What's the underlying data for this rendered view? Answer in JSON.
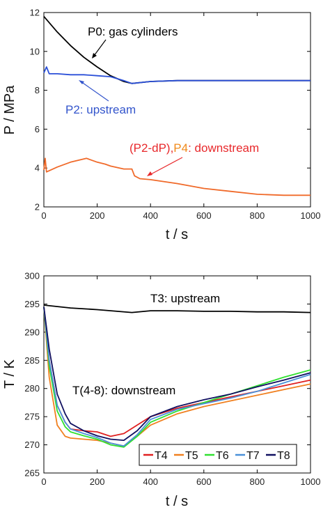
{
  "chart_data": [
    {
      "type": "line",
      "xlabel": "t / s",
      "ylabel": "P / MPa",
      "xlim": [
        0,
        1000
      ],
      "ylim": [
        2,
        12
      ],
      "xticks": [
        0,
        200,
        400,
        600,
        800,
        1000
      ],
      "yticks": [
        2,
        4,
        6,
        8,
        10,
        12
      ],
      "grid": false,
      "annotations": [
        {
          "key": "p0",
          "text": "P0: gas cylinders",
          "color": "#000000",
          "arrow_to": [
            195,
            9.8
          ]
        },
        {
          "key": "p2",
          "text": "P2: upstream",
          "color": "#3355cc",
          "arrow_to": [
            120,
            8.6
          ]
        },
        {
          "key": "p4",
          "parts": [
            {
              "text": "(P2-dP),",
              "color": "#e8282b"
            },
            {
              "text": "P4",
              "color": "#f08a1a"
            },
            {
              "text": ": downstream",
              "color": "#e8282b"
            }
          ],
          "arrow_to": [
            345,
            3.5
          ]
        }
      ],
      "series": [
        {
          "key": "P0",
          "color": "#000000",
          "x": [
            0,
            50,
            100,
            150,
            200,
            250,
            300,
            330,
            400,
            500,
            600,
            700,
            800,
            900,
            1000
          ],
          "y": [
            11.8,
            11.0,
            10.3,
            9.7,
            9.2,
            8.75,
            8.45,
            8.35,
            8.45,
            8.5,
            8.5,
            8.5,
            8.5,
            8.5,
            8.5
          ]
        },
        {
          "key": "P2",
          "color": "#2a4fd8",
          "x": [
            0,
            10,
            20,
            50,
            100,
            150,
            200,
            250,
            300,
            330,
            400,
            500,
            600,
            700,
            800,
            900,
            1000
          ],
          "y": [
            8.9,
            9.2,
            8.85,
            8.85,
            8.8,
            8.8,
            8.75,
            8.7,
            8.5,
            8.35,
            8.45,
            8.5,
            8.5,
            8.5,
            8.5,
            8.5,
            8.5
          ]
        },
        {
          "key": "P4",
          "color": "#f06a2a",
          "x": [
            0,
            5,
            10,
            50,
            100,
            160,
            200,
            230,
            250,
            300,
            330,
            340,
            360,
            400,
            500,
            600,
            700,
            800,
            900,
            1000
          ],
          "y": [
            3.9,
            4.5,
            3.8,
            4.05,
            4.3,
            4.5,
            4.3,
            4.2,
            4.1,
            3.95,
            3.95,
            3.6,
            3.45,
            3.4,
            3.2,
            2.95,
            2.8,
            2.65,
            2.6,
            2.6
          ]
        }
      ]
    },
    {
      "type": "line",
      "xlabel": "t / s",
      "ylabel": "T / K",
      "xlim": [
        0,
        1000
      ],
      "ylim": [
        265,
        300
      ],
      "xticks": [
        0,
        200,
        400,
        600,
        800,
        1000
      ],
      "yticks": [
        265,
        270,
        275,
        280,
        285,
        290,
        295,
        300
      ],
      "grid": false,
      "annotations": [
        {
          "key": "t3",
          "text": "T3: upstream",
          "color": "#000000"
        },
        {
          "key": "t48",
          "text": "T(4-8): downstream",
          "color": "#000000"
        }
      ],
      "legend": {
        "placement": "bottom-right",
        "entries": [
          "T4",
          "T5",
          "T6",
          "T7",
          "T8"
        ]
      },
      "series": [
        {
          "key": "T3",
          "color": "#000000",
          "x": [
            0,
            100,
            200,
            330,
            400,
            500,
            600,
            700,
            800,
            900,
            1000
          ],
          "y": [
            294.8,
            294.3,
            294.0,
            293.5,
            293.8,
            293.8,
            293.7,
            293.7,
            293.6,
            293.6,
            293.5
          ]
        },
        {
          "key": "T4",
          "name": "T4",
          "color": "#e02020",
          "x": [
            0,
            20,
            50,
            80,
            100,
            150,
            200,
            250,
            300,
            350,
            400,
            500,
            600,
            700,
            800,
            900,
            1000
          ],
          "y": [
            294.5,
            285,
            277,
            274,
            272.8,
            272.5,
            272.3,
            271.5,
            272,
            273.5,
            275,
            276.5,
            277.5,
            278.5,
            279.5,
            280.5,
            281.5
          ]
        },
        {
          "key": "T5",
          "name": "T5",
          "color": "#f08020",
          "x": [
            0,
            20,
            50,
            80,
            100,
            150,
            200,
            250,
            300,
            350,
            400,
            500,
            600,
            700,
            800,
            900,
            1000
          ],
          "y": [
            294.5,
            282,
            273.5,
            271.5,
            271.2,
            271,
            270.8,
            270.3,
            269.8,
            271.5,
            273.5,
            275.5,
            276.8,
            277.8,
            278.8,
            279.8,
            280.8
          ]
        },
        {
          "key": "T6",
          "name": "T6",
          "color": "#30e030",
          "x": [
            0,
            20,
            50,
            80,
            100,
            150,
            200,
            250,
            300,
            350,
            400,
            500,
            600,
            700,
            800,
            900,
            1000
          ],
          "y": [
            294.5,
            284,
            276,
            273.2,
            272.3,
            271.6,
            271,
            270,
            269.6,
            271.5,
            274,
            276,
            277.5,
            279,
            280.5,
            282,
            283.3
          ]
        },
        {
          "key": "T7",
          "name": "T7",
          "color": "#4a90d8",
          "x": [
            0,
            20,
            50,
            80,
            100,
            150,
            200,
            250,
            300,
            350,
            400,
            500,
            600,
            700,
            800,
            900,
            1000
          ],
          "y": [
            294.5,
            285,
            277,
            274,
            272.8,
            272,
            271.3,
            270.3,
            269.8,
            271.8,
            274.5,
            276.3,
            277.3,
            278.3,
            279.5,
            281,
            282.5
          ]
        },
        {
          "key": "T8",
          "name": "T8",
          "color": "#101060",
          "x": [
            0,
            20,
            50,
            80,
            100,
            150,
            200,
            250,
            300,
            350,
            400,
            500,
            600,
            700,
            800,
            900,
            1000
          ],
          "y": [
            294.5,
            287,
            279,
            275.5,
            273.8,
            272.5,
            271.6,
            271,
            270.8,
            272.5,
            275,
            276.8,
            278,
            279,
            280.3,
            281.5,
            282.8
          ]
        }
      ]
    }
  ]
}
